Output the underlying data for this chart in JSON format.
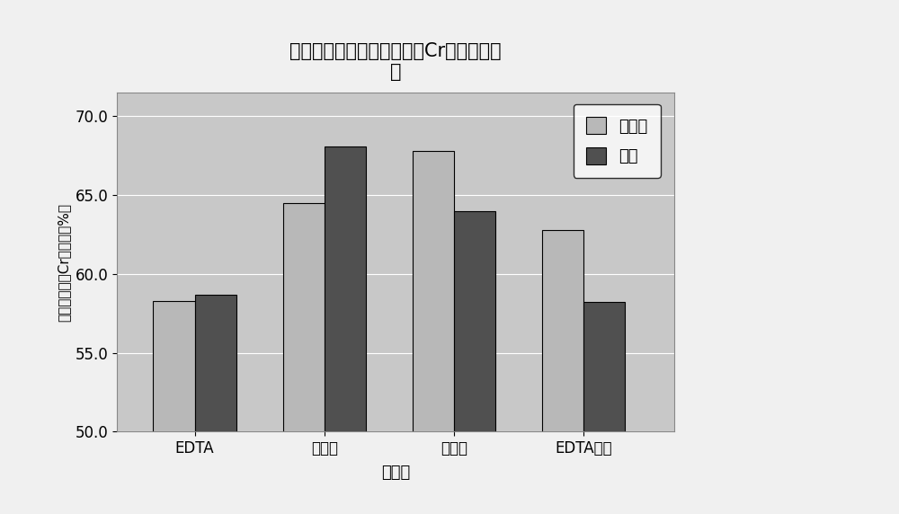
{
  "title": "不同修复剂对污泥中重金属Cr去除率的影\n响",
  "xlabel": "修复剂",
  "ylabel": "污泥中重金属Cr去除率（%）",
  "categories": [
    "EDTA",
    "酒石酸",
    "柠檬酸",
    "EDTA铁钠"
  ],
  "series": [
    {
      "name": "未超声",
      "values": [
        58.3,
        64.5,
        67.8,
        62.8
      ],
      "color": "#b8b8b8"
    },
    {
      "name": "超声",
      "values": [
        58.7,
        68.1,
        64.0,
        58.2
      ],
      "color": "#505050"
    }
  ],
  "ylim": [
    50.0,
    71.5
  ],
  "yticks": [
    50.0,
    55.0,
    60.0,
    65.0,
    70.0
  ],
  "ytick_labels": [
    "50.0",
    "55.0",
    "60.0",
    "65.0",
    "70.0"
  ],
  "bar_width": 0.32,
  "plot_bg_color": "#c8c8c8",
  "fig_bg_color": "#f0f0f0",
  "grid_color": "#e8e8e8",
  "bar_edgecolor": "#000000",
  "legend_pos": "upper right"
}
